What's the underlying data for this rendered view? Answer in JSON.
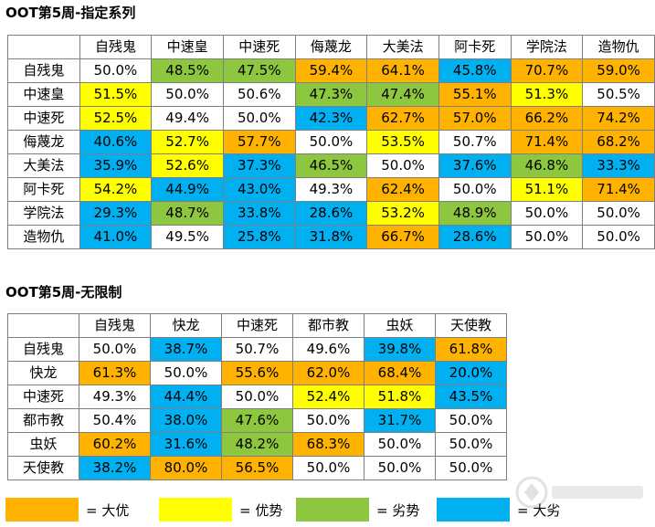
{
  "colors": {
    "big_advantage": "#ffb300",
    "advantage": "#ffff00",
    "disadvantage": "#8dc63f",
    "big_disadvantage": "#00b0f0",
    "even": "#ffffff"
  },
  "table1": {
    "title": "OOT第5周-指定系列",
    "columns": [
      "自残鬼",
      "中速皇",
      "中速死",
      "侮蔑龙",
      "大美法",
      "阿卡死",
      "学院法",
      "造物仇"
    ],
    "rows": [
      {
        "name": "自残鬼",
        "cells": [
          {
            "v": "50.0%",
            "c": "even"
          },
          {
            "v": "48.5%",
            "c": "dis"
          },
          {
            "v": "47.5%",
            "c": "dis"
          },
          {
            "v": "59.4%",
            "c": "big_adv"
          },
          {
            "v": "64.1%",
            "c": "big_adv"
          },
          {
            "v": "45.8%",
            "c": "big_dis"
          },
          {
            "v": "70.7%",
            "c": "big_adv"
          },
          {
            "v": "59.0%",
            "c": "big_adv"
          }
        ]
      },
      {
        "name": "中速皇",
        "cells": [
          {
            "v": "51.5%",
            "c": "adv"
          },
          {
            "v": "50.0%",
            "c": "even"
          },
          {
            "v": "50.6%",
            "c": "even"
          },
          {
            "v": "47.3%",
            "c": "dis"
          },
          {
            "v": "47.4%",
            "c": "dis"
          },
          {
            "v": "55.1%",
            "c": "big_adv"
          },
          {
            "v": "51.3%",
            "c": "adv"
          },
          {
            "v": "50.5%",
            "c": "even"
          }
        ]
      },
      {
        "name": "中速死",
        "cells": [
          {
            "v": "52.5%",
            "c": "adv"
          },
          {
            "v": "49.4%",
            "c": "even"
          },
          {
            "v": "50.0%",
            "c": "even"
          },
          {
            "v": "42.3%",
            "c": "big_dis"
          },
          {
            "v": "62.7%",
            "c": "big_adv"
          },
          {
            "v": "57.0%",
            "c": "big_adv"
          },
          {
            "v": "66.2%",
            "c": "big_adv"
          },
          {
            "v": "74.2%",
            "c": "big_adv"
          }
        ]
      },
      {
        "name": "侮蔑龙",
        "cells": [
          {
            "v": "40.6%",
            "c": "big_dis"
          },
          {
            "v": "52.7%",
            "c": "adv"
          },
          {
            "v": "57.7%",
            "c": "big_adv"
          },
          {
            "v": "50.0%",
            "c": "even"
          },
          {
            "v": "53.5%",
            "c": "adv"
          },
          {
            "v": "50.7%",
            "c": "even"
          },
          {
            "v": "71.4%",
            "c": "big_adv"
          },
          {
            "v": "68.2%",
            "c": "big_adv"
          }
        ]
      },
      {
        "name": "大美法",
        "cells": [
          {
            "v": "35.9%",
            "c": "big_dis"
          },
          {
            "v": "52.6%",
            "c": "adv"
          },
          {
            "v": "37.3%",
            "c": "big_dis"
          },
          {
            "v": "46.5%",
            "c": "dis"
          },
          {
            "v": "50.0%",
            "c": "even"
          },
          {
            "v": "37.6%",
            "c": "big_dis"
          },
          {
            "v": "46.8%",
            "c": "dis"
          },
          {
            "v": "33.3%",
            "c": "big_dis"
          }
        ]
      },
      {
        "name": "阿卡死",
        "cells": [
          {
            "v": "54.2%",
            "c": "adv"
          },
          {
            "v": "44.9%",
            "c": "big_dis"
          },
          {
            "v": "43.0%",
            "c": "big_dis"
          },
          {
            "v": "49.3%",
            "c": "even"
          },
          {
            "v": "62.4%",
            "c": "big_adv"
          },
          {
            "v": "50.0%",
            "c": "even"
          },
          {
            "v": "51.1%",
            "c": "adv"
          },
          {
            "v": "71.4%",
            "c": "big_adv"
          }
        ]
      },
      {
        "name": "学院法",
        "cells": [
          {
            "v": "29.3%",
            "c": "big_dis"
          },
          {
            "v": "48.7%",
            "c": "dis"
          },
          {
            "v": "33.8%",
            "c": "big_dis"
          },
          {
            "v": "28.6%",
            "c": "big_dis"
          },
          {
            "v": "53.2%",
            "c": "adv"
          },
          {
            "v": "48.9%",
            "c": "dis"
          },
          {
            "v": "50.0%",
            "c": "even"
          },
          {
            "v": "50.0%",
            "c": "even"
          }
        ]
      },
      {
        "name": "造物仇",
        "cells": [
          {
            "v": "41.0%",
            "c": "big_dis"
          },
          {
            "v": "49.5%",
            "c": "even"
          },
          {
            "v": "25.8%",
            "c": "big_dis"
          },
          {
            "v": "31.8%",
            "c": "big_dis"
          },
          {
            "v": "66.7%",
            "c": "big_adv"
          },
          {
            "v": "28.6%",
            "c": "big_dis"
          },
          {
            "v": "50.0%",
            "c": "even"
          },
          {
            "v": "50.0%",
            "c": "even"
          }
        ]
      }
    ]
  },
  "table2": {
    "title": "OOT第5周-无限制",
    "columns": [
      "自残鬼",
      "快龙",
      "中速死",
      "都市教",
      "虫妖",
      "天使教"
    ],
    "rows": [
      {
        "name": "自残鬼",
        "cells": [
          {
            "v": "50.0%",
            "c": "even"
          },
          {
            "v": "38.7%",
            "c": "big_dis"
          },
          {
            "v": "50.7%",
            "c": "even"
          },
          {
            "v": "49.6%",
            "c": "even"
          },
          {
            "v": "39.8%",
            "c": "big_dis"
          },
          {
            "v": "61.8%",
            "c": "big_adv"
          }
        ]
      },
      {
        "name": "快龙",
        "cells": [
          {
            "v": "61.3%",
            "c": "big_adv"
          },
          {
            "v": "50.0%",
            "c": "even"
          },
          {
            "v": "55.6%",
            "c": "big_adv"
          },
          {
            "v": "62.0%",
            "c": "big_adv"
          },
          {
            "v": "68.4%",
            "c": "big_adv"
          },
          {
            "v": "20.0%",
            "c": "big_dis"
          }
        ]
      },
      {
        "name": "中速死",
        "cells": [
          {
            "v": "49.3%",
            "c": "even"
          },
          {
            "v": "44.4%",
            "c": "big_dis"
          },
          {
            "v": "50.0%",
            "c": "even"
          },
          {
            "v": "52.4%",
            "c": "adv"
          },
          {
            "v": "51.8%",
            "c": "adv"
          },
          {
            "v": "43.5%",
            "c": "big_dis"
          }
        ]
      },
      {
        "name": "都市教",
        "cells": [
          {
            "v": "50.4%",
            "c": "even"
          },
          {
            "v": "38.0%",
            "c": "big_dis"
          },
          {
            "v": "47.6%",
            "c": "dis"
          },
          {
            "v": "50.0%",
            "c": "even"
          },
          {
            "v": "31.7%",
            "c": "big_dis"
          },
          {
            "v": "50.0%",
            "c": "even"
          }
        ]
      },
      {
        "name": "虫妖",
        "cells": [
          {
            "v": "60.2%",
            "c": "big_adv"
          },
          {
            "v": "31.6%",
            "c": "big_dis"
          },
          {
            "v": "48.2%",
            "c": "dis"
          },
          {
            "v": "68.3%",
            "c": "big_adv"
          },
          {
            "v": "50.0%",
            "c": "even"
          },
          {
            "v": "50.0%",
            "c": "even"
          }
        ]
      },
      {
        "name": "天使教",
        "cells": [
          {
            "v": "38.2%",
            "c": "big_dis"
          },
          {
            "v": "80.0%",
            "c": "big_adv"
          },
          {
            "v": "56.5%",
            "c": "big_adv"
          },
          {
            "v": "50.0%",
            "c": "even"
          },
          {
            "v": "50.0%",
            "c": "even"
          },
          {
            "v": "50.0%",
            "c": "even"
          }
        ]
      }
    ]
  },
  "legend": [
    {
      "label": "= 大优",
      "c": "big_adv"
    },
    {
      "label": "= 优势",
      "c": "adv"
    },
    {
      "label": "= 劣势",
      "c": "dis"
    },
    {
      "label": "= 大劣",
      "c": "big_dis"
    }
  ]
}
